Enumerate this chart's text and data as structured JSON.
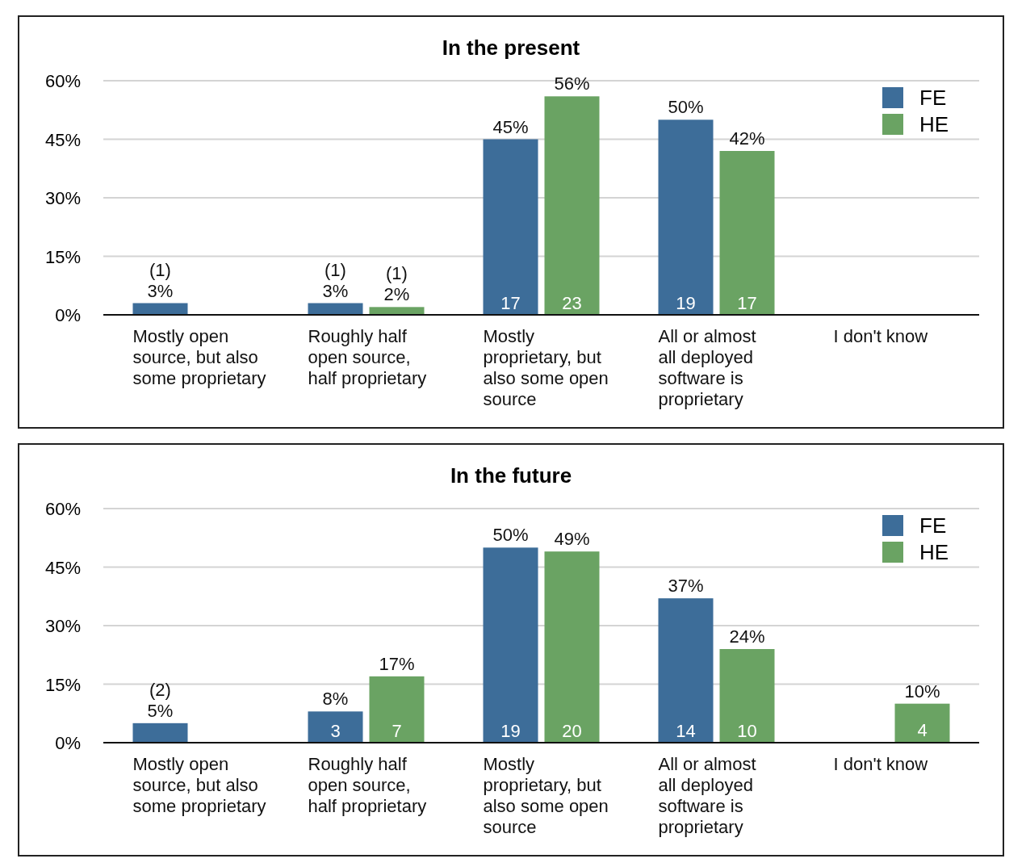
{
  "chart_data": [
    {
      "type": "bar",
      "title": "In the present",
      "categories": [
        "Mostly open source, but also some proprietary",
        "Roughly half open source, half proprietary",
        "Mostly proprietary, but also some open source",
        "All or almost all deployed software is proprietary",
        "I don't know"
      ],
      "series": [
        {
          "name": "FE",
          "color": "#3d6d99",
          "values": [
            3,
            3,
            45,
            50,
            null
          ],
          "value_labels": [
            "(1)\n3%",
            "(1)\n3%",
            "45%",
            "50%",
            null
          ]
        },
        {
          "name": "HE",
          "color": "#6aa363",
          "values": [
            null,
            2,
            56,
            42,
            null
          ],
          "value_labels": [
            null,
            "(1)\n2%",
            "56%",
            "42%",
            null
          ]
        }
      ],
      "annotations": [
        {
          "text": "17",
          "x": "Mostly proprietary, but also some open source",
          "y": 3
        },
        {
          "text": "23",
          "x": "Mostly proprietary, but also some open source",
          "y": 3
        },
        {
          "text": "19",
          "x": "All or almost all deployed software is proprietary",
          "y": 3
        },
        {
          "text": "17",
          "x": "All or almost all deployed software is proprietary",
          "y": 3
        }
      ],
      "ylim": [
        0,
        60
      ],
      "yticks": [
        {
          "value": 0,
          "label": "0%"
        },
        {
          "value": 15,
          "label": "15%"
        },
        {
          "value": 30,
          "label": "30%"
        },
        {
          "value": 45,
          "label": "45%"
        },
        {
          "value": 60,
          "label": "60%"
        }
      ],
      "grid": "y",
      "legend": "top right"
    },
    {
      "type": "bar",
      "title": "In the future",
      "categories": [
        "Mostly open source, but also some proprietary",
        "Roughly half open source, half proprietary",
        "Mostly proprietary, but also some open source",
        "All or almost all deployed software is proprietary",
        "I don't know"
      ],
      "series": [
        {
          "name": "FE",
          "color": "#3d6d99",
          "values": [
            5,
            8,
            50,
            37,
            null
          ],
          "value_labels": [
            "(2)\n5%",
            "8%",
            "50%",
            "37%",
            null
          ]
        },
        {
          "name": "HE",
          "color": "#6aa363",
          "values": [
            null,
            17,
            49,
            24,
            10
          ],
          "value_labels": [
            null,
            "17%",
            "49%",
            "24%",
            "10%"
          ]
        }
      ],
      "annotations": [
        {
          "text": "3",
          "x": "Roughly half open source, half proprietary",
          "y": 3
        },
        {
          "text": "7",
          "x": "Roughly half open source, half proprietary",
          "y": 3
        },
        {
          "text": "19",
          "x": "Mostly proprietary, but also some open source",
          "y": 3
        },
        {
          "text": "20",
          "x": "Mostly proprietary, but also some open source",
          "y": 3
        },
        {
          "text": "14",
          "x": "All or almost all deployed software is proprietary",
          "y": 3
        },
        {
          "text": "10",
          "x": "All or almost all deployed software is proprietary",
          "y": 3
        },
        "4"
      ],
      "ylim": [
        0,
        60
      ],
      "yticks": [
        {
          "value": 0,
          "label": "0%"
        },
        {
          "value": 15,
          "label": "15%"
        },
        {
          "value": 30,
          "label": "30%"
        },
        {
          "value": 45,
          "label": "45%"
        },
        {
          "value": 60,
          "label": "60%"
        }
      ],
      "grid": "y",
      "legend": "top right"
    }
  ]
}
